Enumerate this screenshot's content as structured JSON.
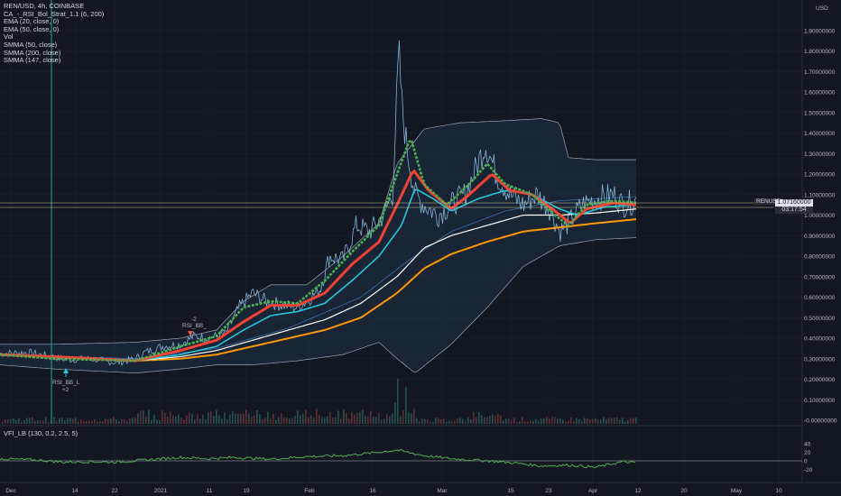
{
  "legend": {
    "symbol": "REN/USD, 4h, COINBASE",
    "items": [
      "CA_-_RSI_Bol_Strat_1.1 (6, 200)",
      "EMA (20, close, 0)",
      "EMA (50, close, 0)",
      "Vol",
      "SMMA (50, close)",
      "SMMA (200, close)",
      "SMMA (147, close)"
    ]
  },
  "price_axis": {
    "currency": "USD",
    "ticks": [
      "1.90000000",
      "1.80000000",
      "1.70000000",
      "1.60000000",
      "1.50000000",
      "1.40000000",
      "1.30000000",
      "1.20000000",
      "1.10000000",
      "1.00000000",
      "0.90000000",
      "0.80000000",
      "0.70000000",
      "0.60000000",
      "0.50000000",
      "0.40000000",
      "0.30000000",
      "0.20000000",
      "0.10000000",
      "-0.00000000"
    ]
  },
  "current": {
    "symbol_tag": "RENUSD",
    "price": "1.07160000",
    "countdown": "03:17:54"
  },
  "signals": [
    {
      "text": "RSI_BB_L",
      "sub": "+2"
    },
    {
      "text": "RSI_BB_",
      "sub": "-2"
    }
  ],
  "vfi": {
    "label": "VFI_LB (130, 0.2, 2.5, 5)",
    "ticks": [
      "40",
      "20",
      "0",
      "-20"
    ]
  },
  "time_axis": [
    "Dec",
    "14",
    "22",
    "2021",
    "11",
    "19",
    "Feb",
    "16",
    "Mar",
    "15",
    "23",
    "Apr",
    "12",
    "20",
    "May",
    "10"
  ],
  "colors": {
    "background": "#131722",
    "candle": "#7fb3d5",
    "ema20": "#4caf50",
    "ema50": "#26c6da",
    "smma50": "#f44336",
    "smma200": "#ff9800",
    "smma147": "#ffffff",
    "bb_band": "#9aa4b4",
    "vfi": "#4caf50"
  }
}
